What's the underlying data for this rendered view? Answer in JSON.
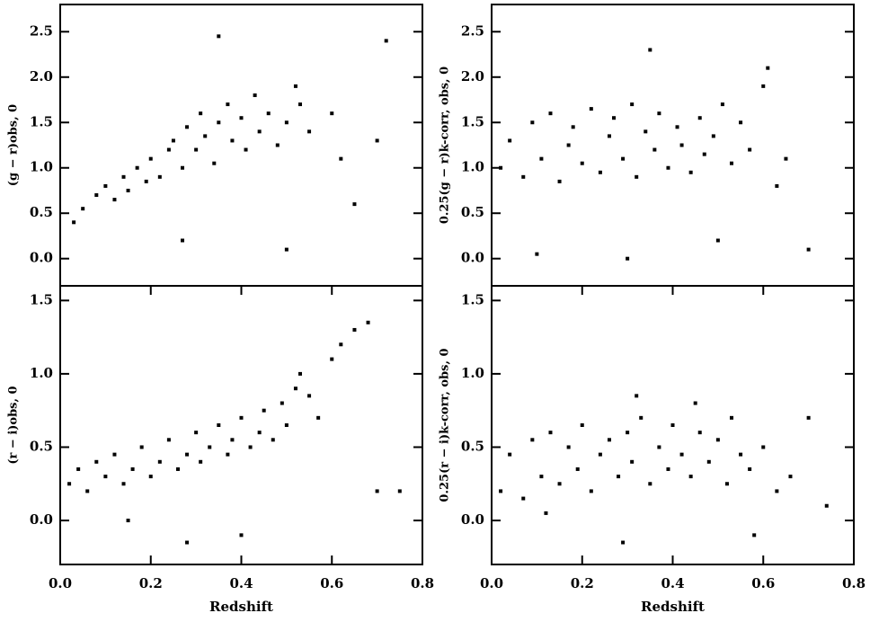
{
  "chart_data": [
    {
      "type": "scatter",
      "y_label": "(g − r)obs, 0",
      "color": "#000000",
      "xlim": [
        0,
        0.8
      ],
      "ylim": [
        -0.3,
        2.8
      ],
      "yticks": [
        {
          "value": 0,
          "label": "0.0"
        },
        0.5,
        {
          "value": 1,
          "label": "1.0"
        },
        1.5,
        {
          "value": 2,
          "label": "2.0"
        },
        2.5
      ],
      "x": [
        0.03,
        0.05,
        0.08,
        0.1,
        0.12,
        0.14,
        0.15,
        0.17,
        0.19,
        0.2,
        0.22,
        0.24,
        0.25,
        0.27,
        0.28,
        0.3,
        0.31,
        0.32,
        0.34,
        0.35,
        0.37,
        0.38,
        0.4,
        0.41,
        0.43,
        0.44,
        0.46,
        0.48,
        0.5,
        0.52,
        0.53,
        0.55,
        0.6,
        0.62,
        0.65,
        0.7,
        0.72,
        0.35,
        0.27,
        0.5
      ],
      "y": [
        0.4,
        0.55,
        0.7,
        0.8,
        0.65,
        0.9,
        0.75,
        1.0,
        0.85,
        1.1,
        0.9,
        1.2,
        1.3,
        1.0,
        1.45,
        1.2,
        1.6,
        1.35,
        1.05,
        1.5,
        1.7,
        1.3,
        1.55,
        1.2,
        1.8,
        1.4,
        1.6,
        1.25,
        1.5,
        1.9,
        1.7,
        1.4,
        1.6,
        1.1,
        0.6,
        1.3,
        2.4,
        2.45,
        0.2,
        0.1
      ]
    },
    {
      "type": "scatter",
      "y_label": "0.25(g − r)k-corr, obs, 0",
      "color": "#000000",
      "xlim": [
        0,
        0.8
      ],
      "ylim": [
        -0.3,
        2.8
      ],
      "yticks": [
        {
          "value": 0,
          "label": "0.0"
        },
        0.5,
        {
          "value": 1,
          "label": "1.0"
        },
        1.5,
        {
          "value": 2,
          "label": "2.0"
        },
        2.5
      ],
      "x": [
        0.02,
        0.04,
        0.07,
        0.09,
        0.11,
        0.13,
        0.15,
        0.17,
        0.18,
        0.2,
        0.22,
        0.24,
        0.26,
        0.27,
        0.29,
        0.31,
        0.32,
        0.34,
        0.36,
        0.37,
        0.39,
        0.41,
        0.42,
        0.44,
        0.46,
        0.47,
        0.49,
        0.51,
        0.53,
        0.55,
        0.57,
        0.6,
        0.63,
        0.65,
        0.7,
        0.1,
        0.35,
        0.5,
        0.61,
        0.3
      ],
      "y": [
        1.0,
        1.3,
        0.9,
        1.5,
        1.1,
        1.6,
        0.85,
        1.25,
        1.45,
        1.05,
        1.65,
        0.95,
        1.35,
        1.55,
        1.1,
        1.7,
        0.9,
        1.4,
        1.2,
        1.6,
        1.0,
        1.45,
        1.25,
        0.95,
        1.55,
        1.15,
        1.35,
        1.7,
        1.05,
        1.5,
        1.2,
        1.9,
        0.8,
        1.1,
        0.1,
        0.05,
        2.3,
        0.2,
        2.1,
        0.0
      ]
    },
    {
      "type": "scatter",
      "y_label": "(r − i)obs, 0",
      "x_label": "Redshift",
      "color": "#000000",
      "xlim": [
        0,
        0.8
      ],
      "ylim": [
        -0.3,
        1.6
      ],
      "xticks": [
        {
          "value": 0,
          "label": "0.0"
        },
        0.2,
        0.4,
        0.6,
        0.8
      ],
      "yticks": [
        {
          "value": 0,
          "label": "0.0"
        },
        0.5,
        {
          "value": 1,
          "label": "1.0"
        },
        1.5
      ],
      "x": [
        0.02,
        0.04,
        0.06,
        0.08,
        0.1,
        0.12,
        0.14,
        0.16,
        0.18,
        0.2,
        0.22,
        0.24,
        0.26,
        0.28,
        0.3,
        0.31,
        0.33,
        0.35,
        0.37,
        0.38,
        0.4,
        0.42,
        0.44,
        0.45,
        0.47,
        0.49,
        0.5,
        0.52,
        0.53,
        0.55,
        0.57,
        0.6,
        0.62,
        0.65,
        0.68,
        0.7,
        0.28,
        0.15,
        0.4,
        0.75
      ],
      "y": [
        0.25,
        0.35,
        0.2,
        0.4,
        0.3,
        0.45,
        0.25,
        0.35,
        0.5,
        0.3,
        0.4,
        0.55,
        0.35,
        0.45,
        0.6,
        0.4,
        0.5,
        0.65,
        0.45,
        0.55,
        0.7,
        0.5,
        0.6,
        0.75,
        0.55,
        0.8,
        0.65,
        0.9,
        1.0,
        0.85,
        0.7,
        1.1,
        1.2,
        1.3,
        1.35,
        0.2,
        -0.15,
        0.0,
        -0.1,
        0.2
      ]
    },
    {
      "type": "scatter",
      "y_label": "0.25(r − i)k-corr, obs, 0",
      "x_label": "Redshift",
      "color": "#000000",
      "xlim": [
        0,
        0.8
      ],
      "ylim": [
        -0.3,
        1.6
      ],
      "xticks": [
        {
          "value": 0,
          "label": "0.0"
        },
        0.2,
        0.4,
        0.6,
        0.8
      ],
      "yticks": [
        {
          "value": 0,
          "label": "0.0"
        },
        0.5,
        {
          "value": 1,
          "label": "1.0"
        },
        1.5
      ],
      "x": [
        0.02,
        0.04,
        0.07,
        0.09,
        0.11,
        0.13,
        0.15,
        0.17,
        0.19,
        0.2,
        0.22,
        0.24,
        0.26,
        0.28,
        0.3,
        0.31,
        0.33,
        0.35,
        0.37,
        0.39,
        0.4,
        0.42,
        0.44,
        0.46,
        0.48,
        0.5,
        0.52,
        0.53,
        0.55,
        0.57,
        0.6,
        0.63,
        0.66,
        0.7,
        0.74,
        0.29,
        0.12,
        0.45,
        0.58,
        0.32
      ],
      "y": [
        0.2,
        0.45,
        0.15,
        0.55,
        0.3,
        0.6,
        0.25,
        0.5,
        0.35,
        0.65,
        0.2,
        0.45,
        0.55,
        0.3,
        0.6,
        0.4,
        0.7,
        0.25,
        0.5,
        0.35,
        0.65,
        0.45,
        0.3,
        0.6,
        0.4,
        0.55,
        0.25,
        0.7,
        0.45,
        0.35,
        0.5,
        0.2,
        0.3,
        0.7,
        0.1,
        -0.15,
        0.05,
        0.8,
        -0.1,
        0.85
      ]
    }
  ]
}
